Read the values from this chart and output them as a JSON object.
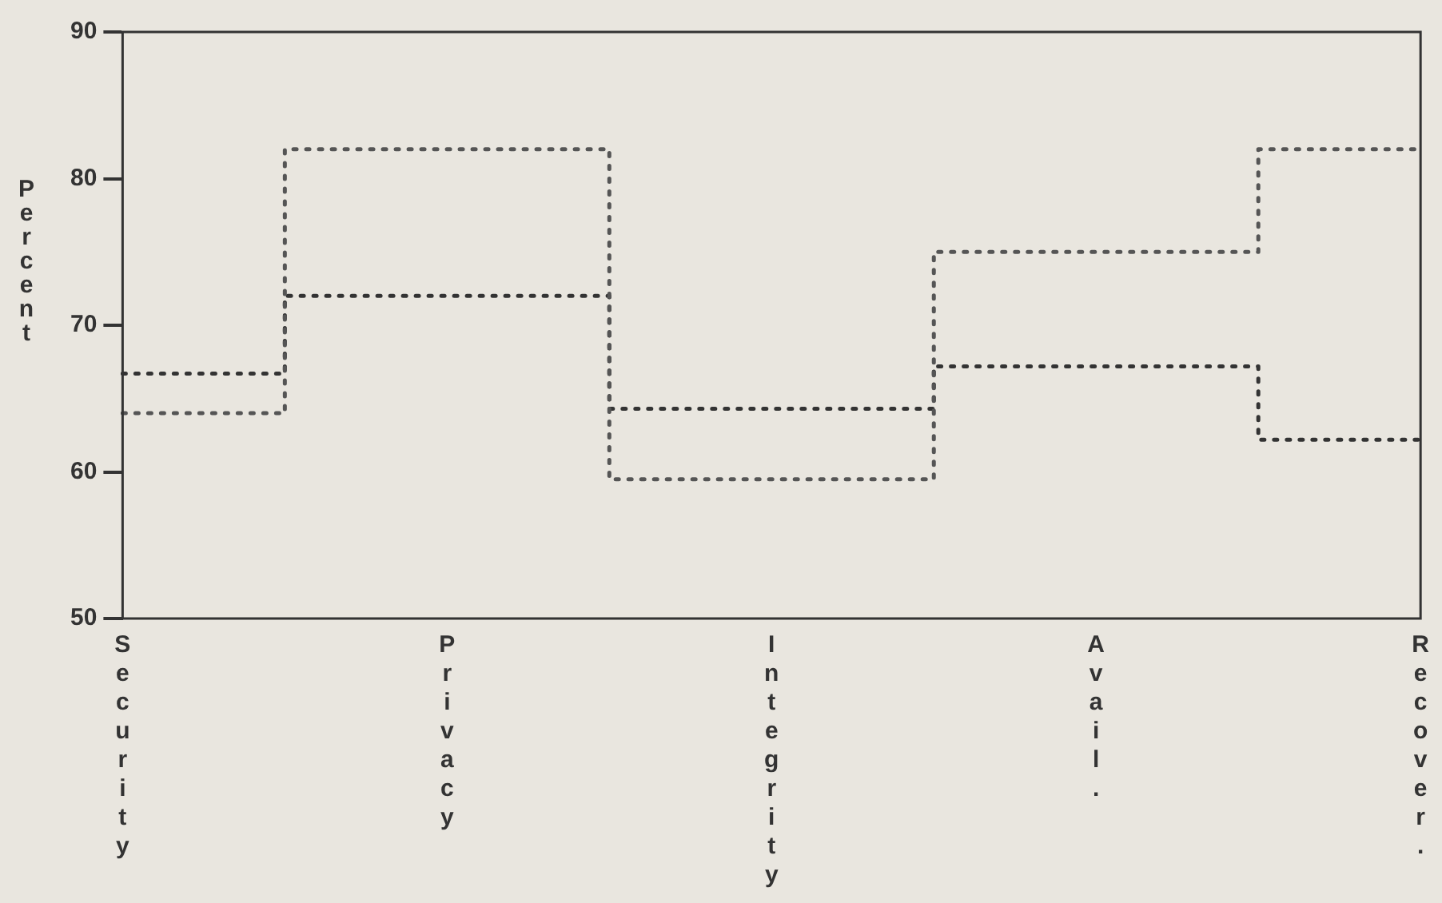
{
  "chart_data": {
    "type": "step",
    "ylabel": "Percent",
    "categories": [
      "Security",
      "Privacy",
      "Integrity",
      "Avail.",
      "Recover."
    ],
    "series": [
      {
        "color": "#555555",
        "values": [
          64,
          82,
          59.5,
          75,
          82
        ]
      },
      {
        "color": "#333333",
        "values": [
          66.7,
          72,
          64.3,
          67.2,
          62.2
        ]
      }
    ],
    "ylim": [
      50,
      90
    ],
    "yticks": [
      50,
      60,
      70,
      80,
      90
    ],
    "grid": false,
    "legend": false,
    "marker": "none",
    "line_style": "dotted"
  }
}
